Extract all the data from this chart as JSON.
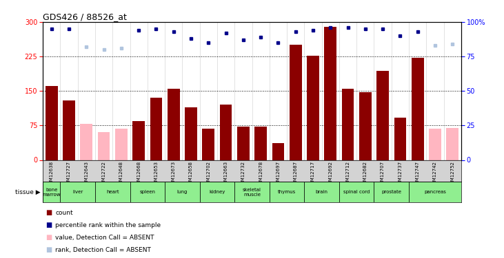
{
  "title": "GDS426 / 88526_at",
  "samples": [
    "GSM12638",
    "GSM12727",
    "GSM12643",
    "GSM12722",
    "GSM12648",
    "GSM12668",
    "GSM12653",
    "GSM12673",
    "GSM12658",
    "GSM12702",
    "GSM12663",
    "GSM12732",
    "GSM12678",
    "GSM12697",
    "GSM12687",
    "GSM12717",
    "GSM12692",
    "GSM12712",
    "GSM12682",
    "GSM12707",
    "GSM12737",
    "GSM12747",
    "GSM12742",
    "GSM12752"
  ],
  "count_values": [
    160,
    130,
    null,
    null,
    null,
    85,
    135,
    155,
    115,
    68,
    120,
    72,
    73,
    37,
    250,
    227,
    290,
    155,
    148,
    193,
    92,
    222,
    null,
    null
  ],
  "count_absent": [
    null,
    null,
    78,
    60,
    68,
    null,
    null,
    null,
    null,
    null,
    null,
    null,
    null,
    null,
    null,
    null,
    null,
    null,
    null,
    null,
    null,
    null,
    68,
    70
  ],
  "rank_values_pct": [
    95,
    95,
    null,
    null,
    null,
    94,
    95,
    93,
    88,
    85,
    92,
    87,
    89,
    85,
    93,
    94,
    96,
    96,
    95,
    95,
    90,
    93,
    null,
    null
  ],
  "rank_absent_pct": [
    null,
    null,
    82,
    80,
    81,
    null,
    null,
    null,
    null,
    null,
    null,
    null,
    null,
    null,
    null,
    null,
    null,
    null,
    null,
    null,
    null,
    null,
    83,
    84
  ],
  "tissues": [
    {
      "name": "bone\nmarrow",
      "start": 0,
      "end": 1
    },
    {
      "name": "liver",
      "start": 1,
      "end": 3
    },
    {
      "name": "heart",
      "start": 3,
      "end": 5
    },
    {
      "name": "spleen",
      "start": 5,
      "end": 7
    },
    {
      "name": "lung",
      "start": 7,
      "end": 9
    },
    {
      "name": "kidney",
      "start": 9,
      "end": 11
    },
    {
      "name": "skeletal\nmuscle",
      "start": 11,
      "end": 13
    },
    {
      "name": "thymus",
      "start": 13,
      "end": 15
    },
    {
      "name": "brain",
      "start": 15,
      "end": 17
    },
    {
      "name": "spinal cord",
      "start": 17,
      "end": 19
    },
    {
      "name": "prostate",
      "start": 19,
      "end": 21
    },
    {
      "name": "pancreas",
      "start": 21,
      "end": 24
    }
  ],
  "ylim_left": [
    0,
    300
  ],
  "ylim_right": [
    0,
    100
  ],
  "yticks_left": [
    0,
    75,
    150,
    225,
    300
  ],
  "yticks_right": [
    0,
    25,
    50,
    75,
    100
  ],
  "bar_color": "#8b0000",
  "bar_absent_color": "#ffb6c1",
  "rank_color": "#00008b",
  "rank_absent_color": "#b0c4de",
  "tissue_color": "#90ee90",
  "bg_color_xtick": "#d3d3d3"
}
